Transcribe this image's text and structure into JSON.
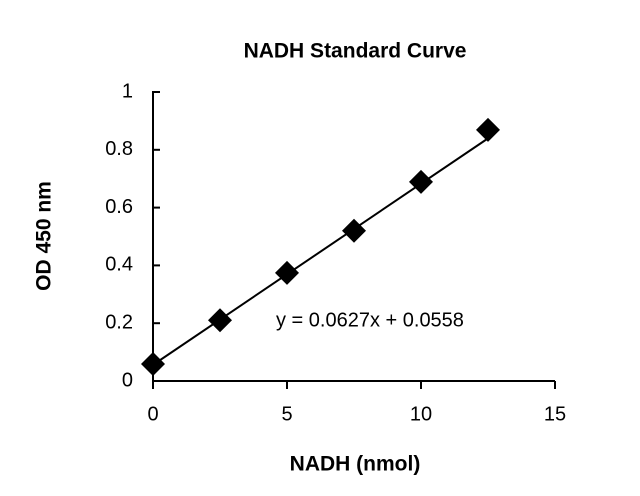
{
  "chart_data": {
    "type": "scatter",
    "title": "NADH Standard Curve",
    "x_label": "NADH (nmol)",
    "y_label": "OD 450 nm",
    "x": [
      0,
      2.5,
      5,
      7.5,
      10,
      12.5
    ],
    "values": [
      0.059,
      0.21,
      0.374,
      0.52,
      0.689,
      0.869
    ],
    "color": "#000000",
    "xlim": [
      0,
      15
    ],
    "xticks": [
      0,
      5,
      10,
      15
    ],
    "ylim": [
      0,
      1
    ],
    "yticks": [
      0,
      0.2,
      0.4,
      0.6,
      0.8,
      1
    ],
    "grid": false,
    "trendline": {
      "slope": 0.0627,
      "intercept": 0.0558,
      "label": "y = 0.0627x + 0.0558"
    }
  }
}
